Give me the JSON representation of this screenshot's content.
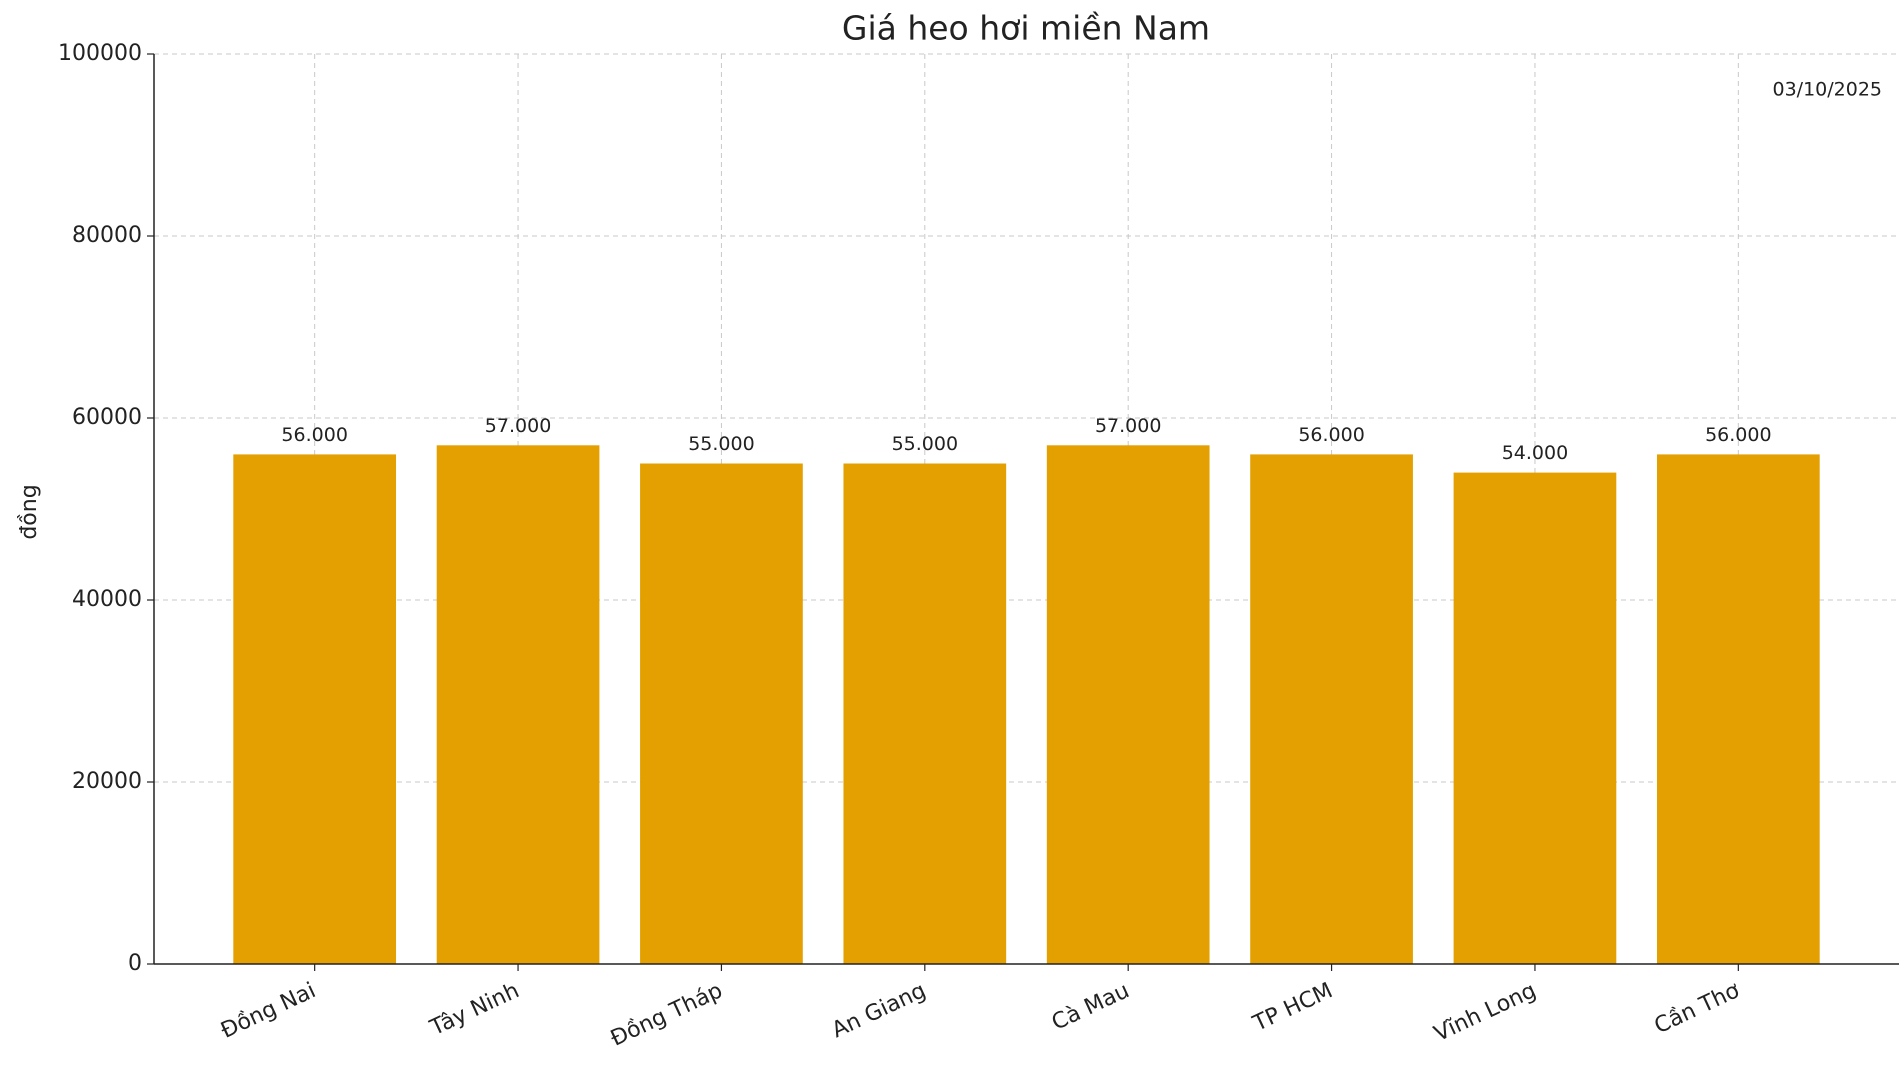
{
  "chart_data": {
    "type": "bar",
    "title": "Giá heo hơi miền Nam",
    "y_label": "đồng",
    "annotation": "03/10/2025",
    "categories": [
      "Đồng Nai",
      "Tây Ninh",
      "Đồng Tháp",
      "An Giang",
      "Cà Mau",
      "TP HCM",
      "Vĩnh Long",
      "Cần Thơ"
    ],
    "values": [
      56000,
      57000,
      55000,
      55000,
      57000,
      56000,
      54000,
      56000
    ],
    "value_labels": [
      "56.000",
      "57.000",
      "55.000",
      "55.000",
      "57.000",
      "56.000",
      "54.000",
      "56.000"
    ],
    "color": "#e3a000",
    "ylim": [
      0,
      100000
    ],
    "yticks": [
      0,
      20000,
      40000,
      60000,
      80000,
      100000
    ],
    "grid": true
  }
}
